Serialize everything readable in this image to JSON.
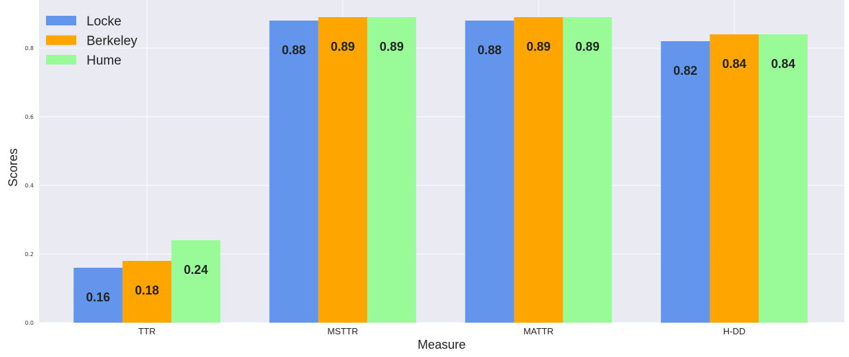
{
  "chart_data": {
    "type": "bar",
    "categories": [
      "TTR",
      "MSTTR",
      "MATTR",
      "H-DD"
    ],
    "series": [
      {
        "name": "Locke",
        "color": "#6495ED",
        "values": [
          0.16,
          0.88,
          0.88,
          0.82
        ],
        "labels": [
          "0.16",
          "0.88",
          "0.88",
          "0.82"
        ]
      },
      {
        "name": "Berkeley",
        "color": "#FFA500",
        "values": [
          0.18,
          0.89,
          0.89,
          0.84
        ],
        "labels": [
          "0.18",
          "0.89",
          "0.89",
          "0.84"
        ]
      },
      {
        "name": "Hume",
        "color": "#98FB98",
        "values": [
          0.24,
          0.89,
          0.89,
          0.84
        ],
        "labels": [
          "0.24",
          "0.89",
          "0.89",
          "0.84"
        ]
      }
    ],
    "xlabel": "Measure",
    "ylabel": "Scores",
    "ylim": [
      0,
      0.92
    ],
    "yticks": [
      0.0,
      0.2,
      0.4,
      0.6,
      0.8
    ],
    "ytick_labels": [
      "0.0",
      "0.2",
      "0.4",
      "0.6",
      "0.8"
    ],
    "grid": true,
    "background": "#EAEAF2",
    "legend_position": "top-left"
  }
}
